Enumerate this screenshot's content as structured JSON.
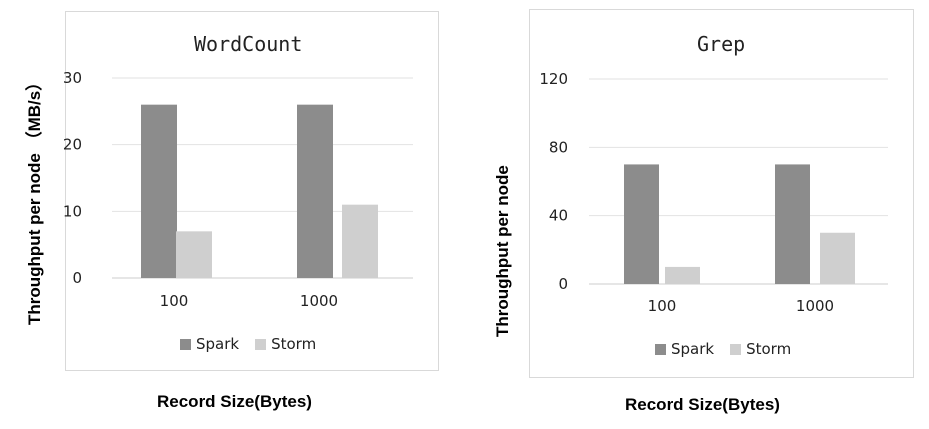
{
  "colors": {
    "spark": "#8c8c8c",
    "storm": "#cfcfcf",
    "grid": "#e2e2e2",
    "axis": "#cccccc"
  },
  "x_axis_label": "Record Size(Bytes)",
  "chart_data": [
    {
      "type": "bar",
      "title": "WordCount",
      "ylabel": "Throughput per node （MB/s）",
      "xlabel": "Record Size(Bytes)",
      "categories": [
        "100",
        "1000"
      ],
      "series": [
        {
          "name": "Spark",
          "values": [
            26,
            26
          ]
        },
        {
          "name": "Storm",
          "values": [
            7,
            11
          ]
        }
      ],
      "yticks": [
        0,
        10,
        20,
        30
      ],
      "ylim": [
        0,
        30
      ],
      "grid": true,
      "legend": "bottom"
    },
    {
      "type": "bar",
      "title": "Grep",
      "ylabel": "Throughput per node",
      "xlabel": "Record Size(Bytes)",
      "categories": [
        "100",
        "1000"
      ],
      "series": [
        {
          "name": "Spark",
          "values": [
            70,
            70
          ]
        },
        {
          "name": "Storm",
          "values": [
            10,
            30
          ]
        }
      ],
      "yticks": [
        0,
        40,
        80,
        120
      ],
      "ylim": [
        0,
        120
      ],
      "grid": true,
      "legend": "bottom"
    }
  ]
}
